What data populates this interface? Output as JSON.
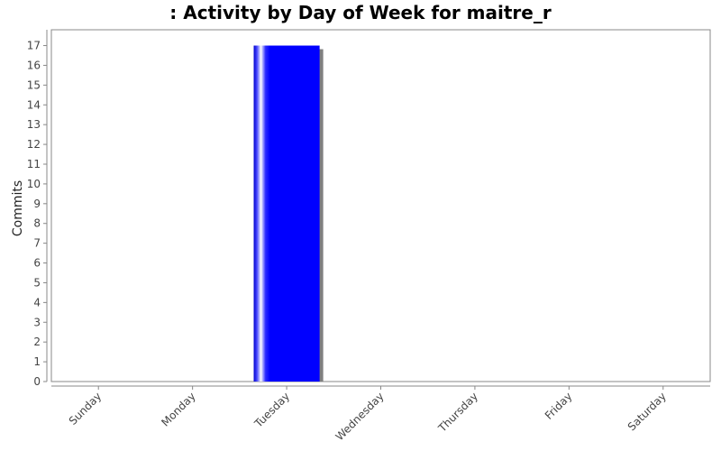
{
  "chart_data": {
    "type": "bar",
    "title": ": Activity by Day of Week for maitre_r",
    "xlabel": "",
    "ylabel": "Commits",
    "categories": [
      "Sunday",
      "Monday",
      "Tuesday",
      "Wednesday",
      "Thursday",
      "Friday",
      "Saturday"
    ],
    "values": [
      0,
      0,
      17,
      0,
      0,
      0,
      0
    ],
    "ylim": [
      0,
      17.8
    ],
    "yticks": [
      0,
      1,
      2,
      3,
      4,
      5,
      6,
      7,
      8,
      9,
      10,
      11,
      12,
      13,
      14,
      15,
      16,
      17
    ],
    "grid": false,
    "bar_color": "#0000ff",
    "plot_border_color": "#888888"
  }
}
